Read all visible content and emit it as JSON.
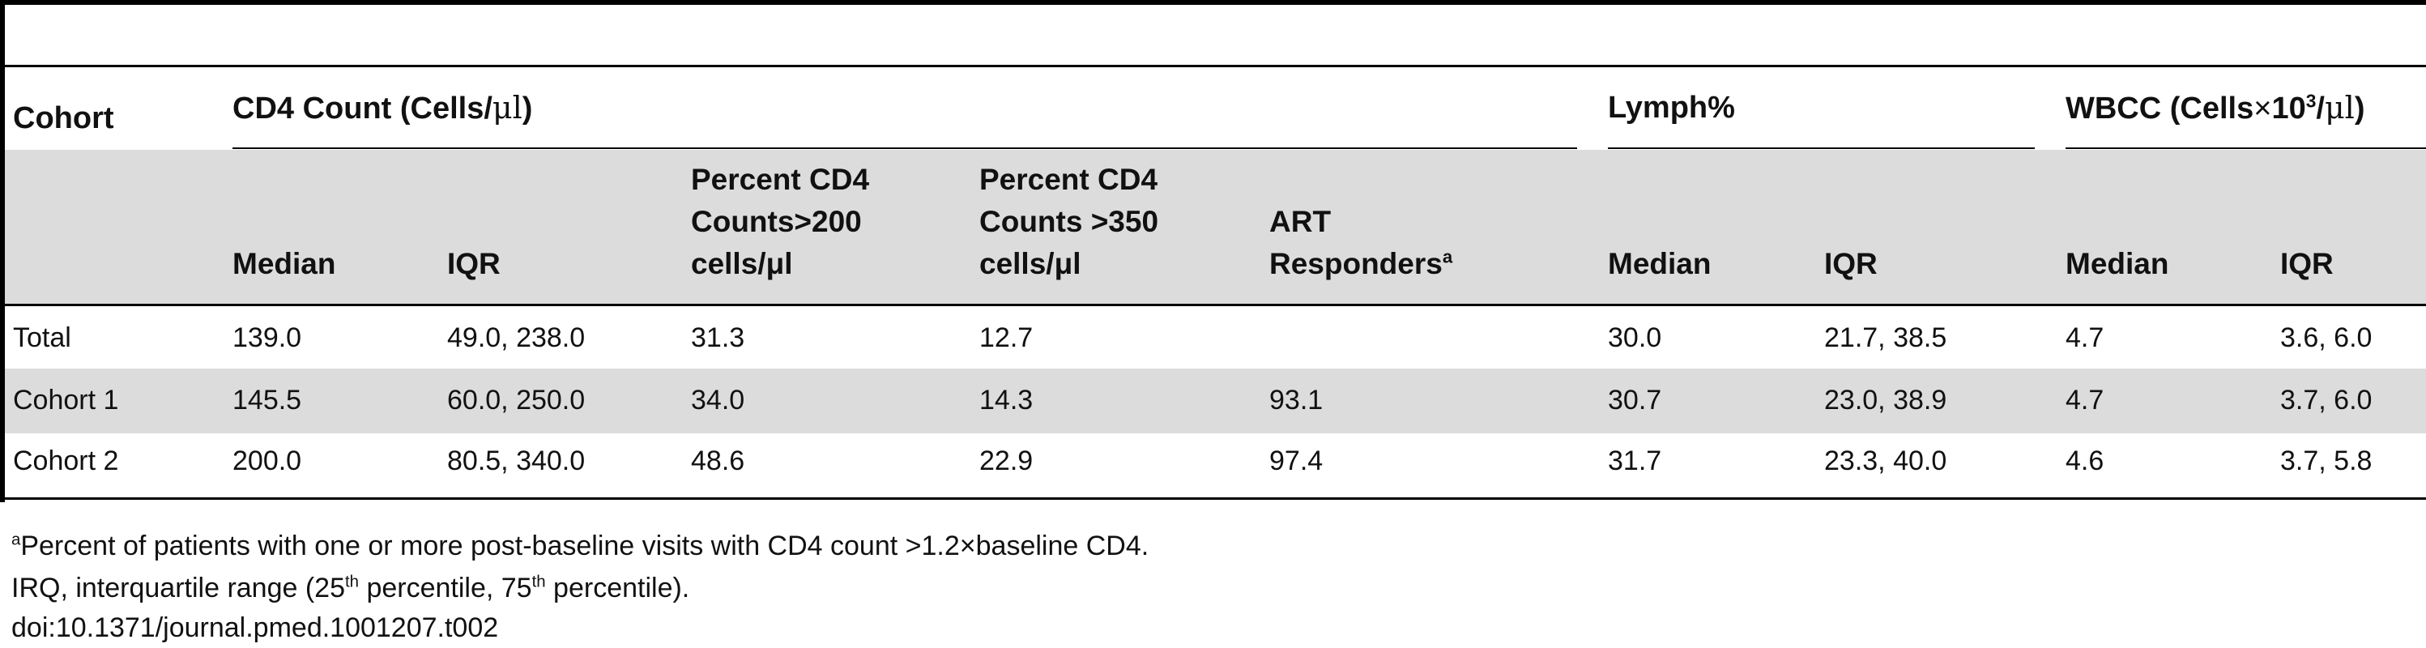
{
  "table": {
    "group_headers": {
      "cohort": "Cohort",
      "cd4": {
        "text": "CD4 Count (Cells/",
        "unit": "μl",
        "close": ")"
      },
      "lymph": "Lymph%",
      "wbcc": {
        "text": "WBCC (Cells",
        "times": "×",
        "base": "10",
        "exp": "3",
        "unit_pre": "/",
        "unit": "μl",
        "close": ")"
      }
    },
    "sub_headers": {
      "cd4_median": "Median",
      "cd4_iqr": "IQR",
      "pct200": [
        "Percent CD4",
        "Counts>200",
        "cells/μl"
      ],
      "pct350": [
        "Percent CD4",
        "Counts >350",
        "cells/μl"
      ],
      "art": [
        "ART",
        "Responders",
        "a"
      ],
      "lymph_median": "Median",
      "lymph_iqr": "IQR",
      "wbcc_median": "Median",
      "wbcc_iqr": "IQR"
    },
    "rows": [
      {
        "cohort": "Total",
        "cd4_median": "139.0",
        "cd4_iqr": "49.0, 238.0",
        "pct200": "31.3",
        "pct350": "12.7",
        "art": "",
        "lymph_median": "30.0",
        "lymph_iqr": "21.7, 38.5",
        "wbcc_median": "4.7",
        "wbcc_iqr": "3.6, 6.0"
      },
      {
        "cohort": "Cohort 1",
        "cd4_median": "145.5",
        "cd4_iqr": "60.0, 250.0",
        "pct200": "34.0",
        "pct350": "14.3",
        "art": "93.1",
        "lymph_median": "30.7",
        "lymph_iqr": "23.0, 38.9",
        "wbcc_median": "4.7",
        "wbcc_iqr": "3.7, 6.0"
      },
      {
        "cohort": "Cohort 2",
        "cd4_median": "200.0",
        "cd4_iqr": "80.5, 340.0",
        "pct200": "48.6",
        "pct350": "22.9",
        "art": "97.4",
        "lymph_median": "31.7",
        "lymph_iqr": "23.3, 40.0",
        "wbcc_median": "4.6",
        "wbcc_iqr": "3.7, 5.8"
      }
    ]
  },
  "footnotes": {
    "a_marker": "a",
    "a_text": "Percent of patients with one or more post-baseline visits with CD4 count >1.2×baseline CD4.",
    "irq_pre": "IRQ, interquartile range (25",
    "irq_th1": "th",
    "irq_mid": " percentile, 75",
    "irq_th2": "th",
    "irq_post": " percentile).",
    "doi": "doi:10.1371/journal.pmed.1001207.t002"
  }
}
